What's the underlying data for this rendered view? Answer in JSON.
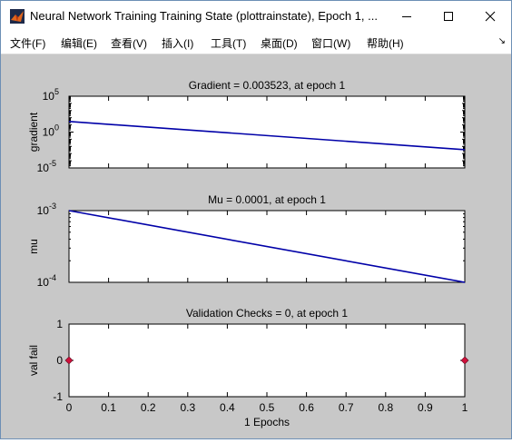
{
  "window": {
    "title": "Neural Network Training Training State (plottrainstate), Epoch 1, ...",
    "icon": "matlab-icon",
    "controls": [
      "minimize-icon",
      "maximize-icon",
      "close-icon"
    ]
  },
  "menu": {
    "items": [
      "文件(F)",
      "编辑(E)",
      "查看(V)",
      "插入(I)",
      "工具(T)",
      "桌面(D)",
      "窗口(W)",
      "帮助(H)"
    ],
    "overflow_glyph": "↘"
  },
  "colors": {
    "line": "#0000a8",
    "marker": "#d0103a",
    "figure_bg": "#c8c8c8"
  },
  "chart_data": [
    {
      "type": "line",
      "title": "Gradient = 0.003523, at epoch 1",
      "ylabel": "gradient",
      "yscale": "log",
      "ylim": [
        1e-05,
        100000
      ],
      "yticks": [
        {
          "base": "10",
          "exp": "5",
          "value": 100000
        },
        {
          "base": "10",
          "exp": "0",
          "value": 1
        },
        {
          "base": "10",
          "exp": "-5",
          "value": 1e-05
        }
      ],
      "xlim": [
        0,
        1
      ],
      "x": [
        0,
        1
      ],
      "y": [
        30,
        0.003523
      ],
      "grid": false
    },
    {
      "type": "line",
      "title": "Mu = 0.0001, at epoch 1",
      "ylabel": "mu",
      "yscale": "log",
      "ylim": [
        0.0001,
        0.001
      ],
      "yticks": [
        {
          "base": "10",
          "exp": "-3",
          "value": 0.001
        },
        {
          "base": "10",
          "exp": "-4",
          "value": 0.0001
        }
      ],
      "xlim": [
        0,
        1
      ],
      "x": [
        0,
        1
      ],
      "y": [
        0.001,
        0.0001
      ],
      "grid": false
    },
    {
      "type": "scatter",
      "title": "Validation Checks = 0, at epoch 1",
      "ylabel": "val fail",
      "xlabel": "1 Epochs",
      "ylim": [
        -1,
        1
      ],
      "yticks": [
        "1",
        "0",
        "-1"
      ],
      "xlim": [
        0,
        1
      ],
      "xticks": [
        "0",
        "0.1",
        "0.2",
        "0.3",
        "0.4",
        "0.5",
        "0.6",
        "0.7",
        "0.8",
        "0.9",
        "1"
      ],
      "x": [
        0,
        1
      ],
      "y": [
        0,
        0
      ],
      "marker": "diamond",
      "grid": false
    }
  ]
}
